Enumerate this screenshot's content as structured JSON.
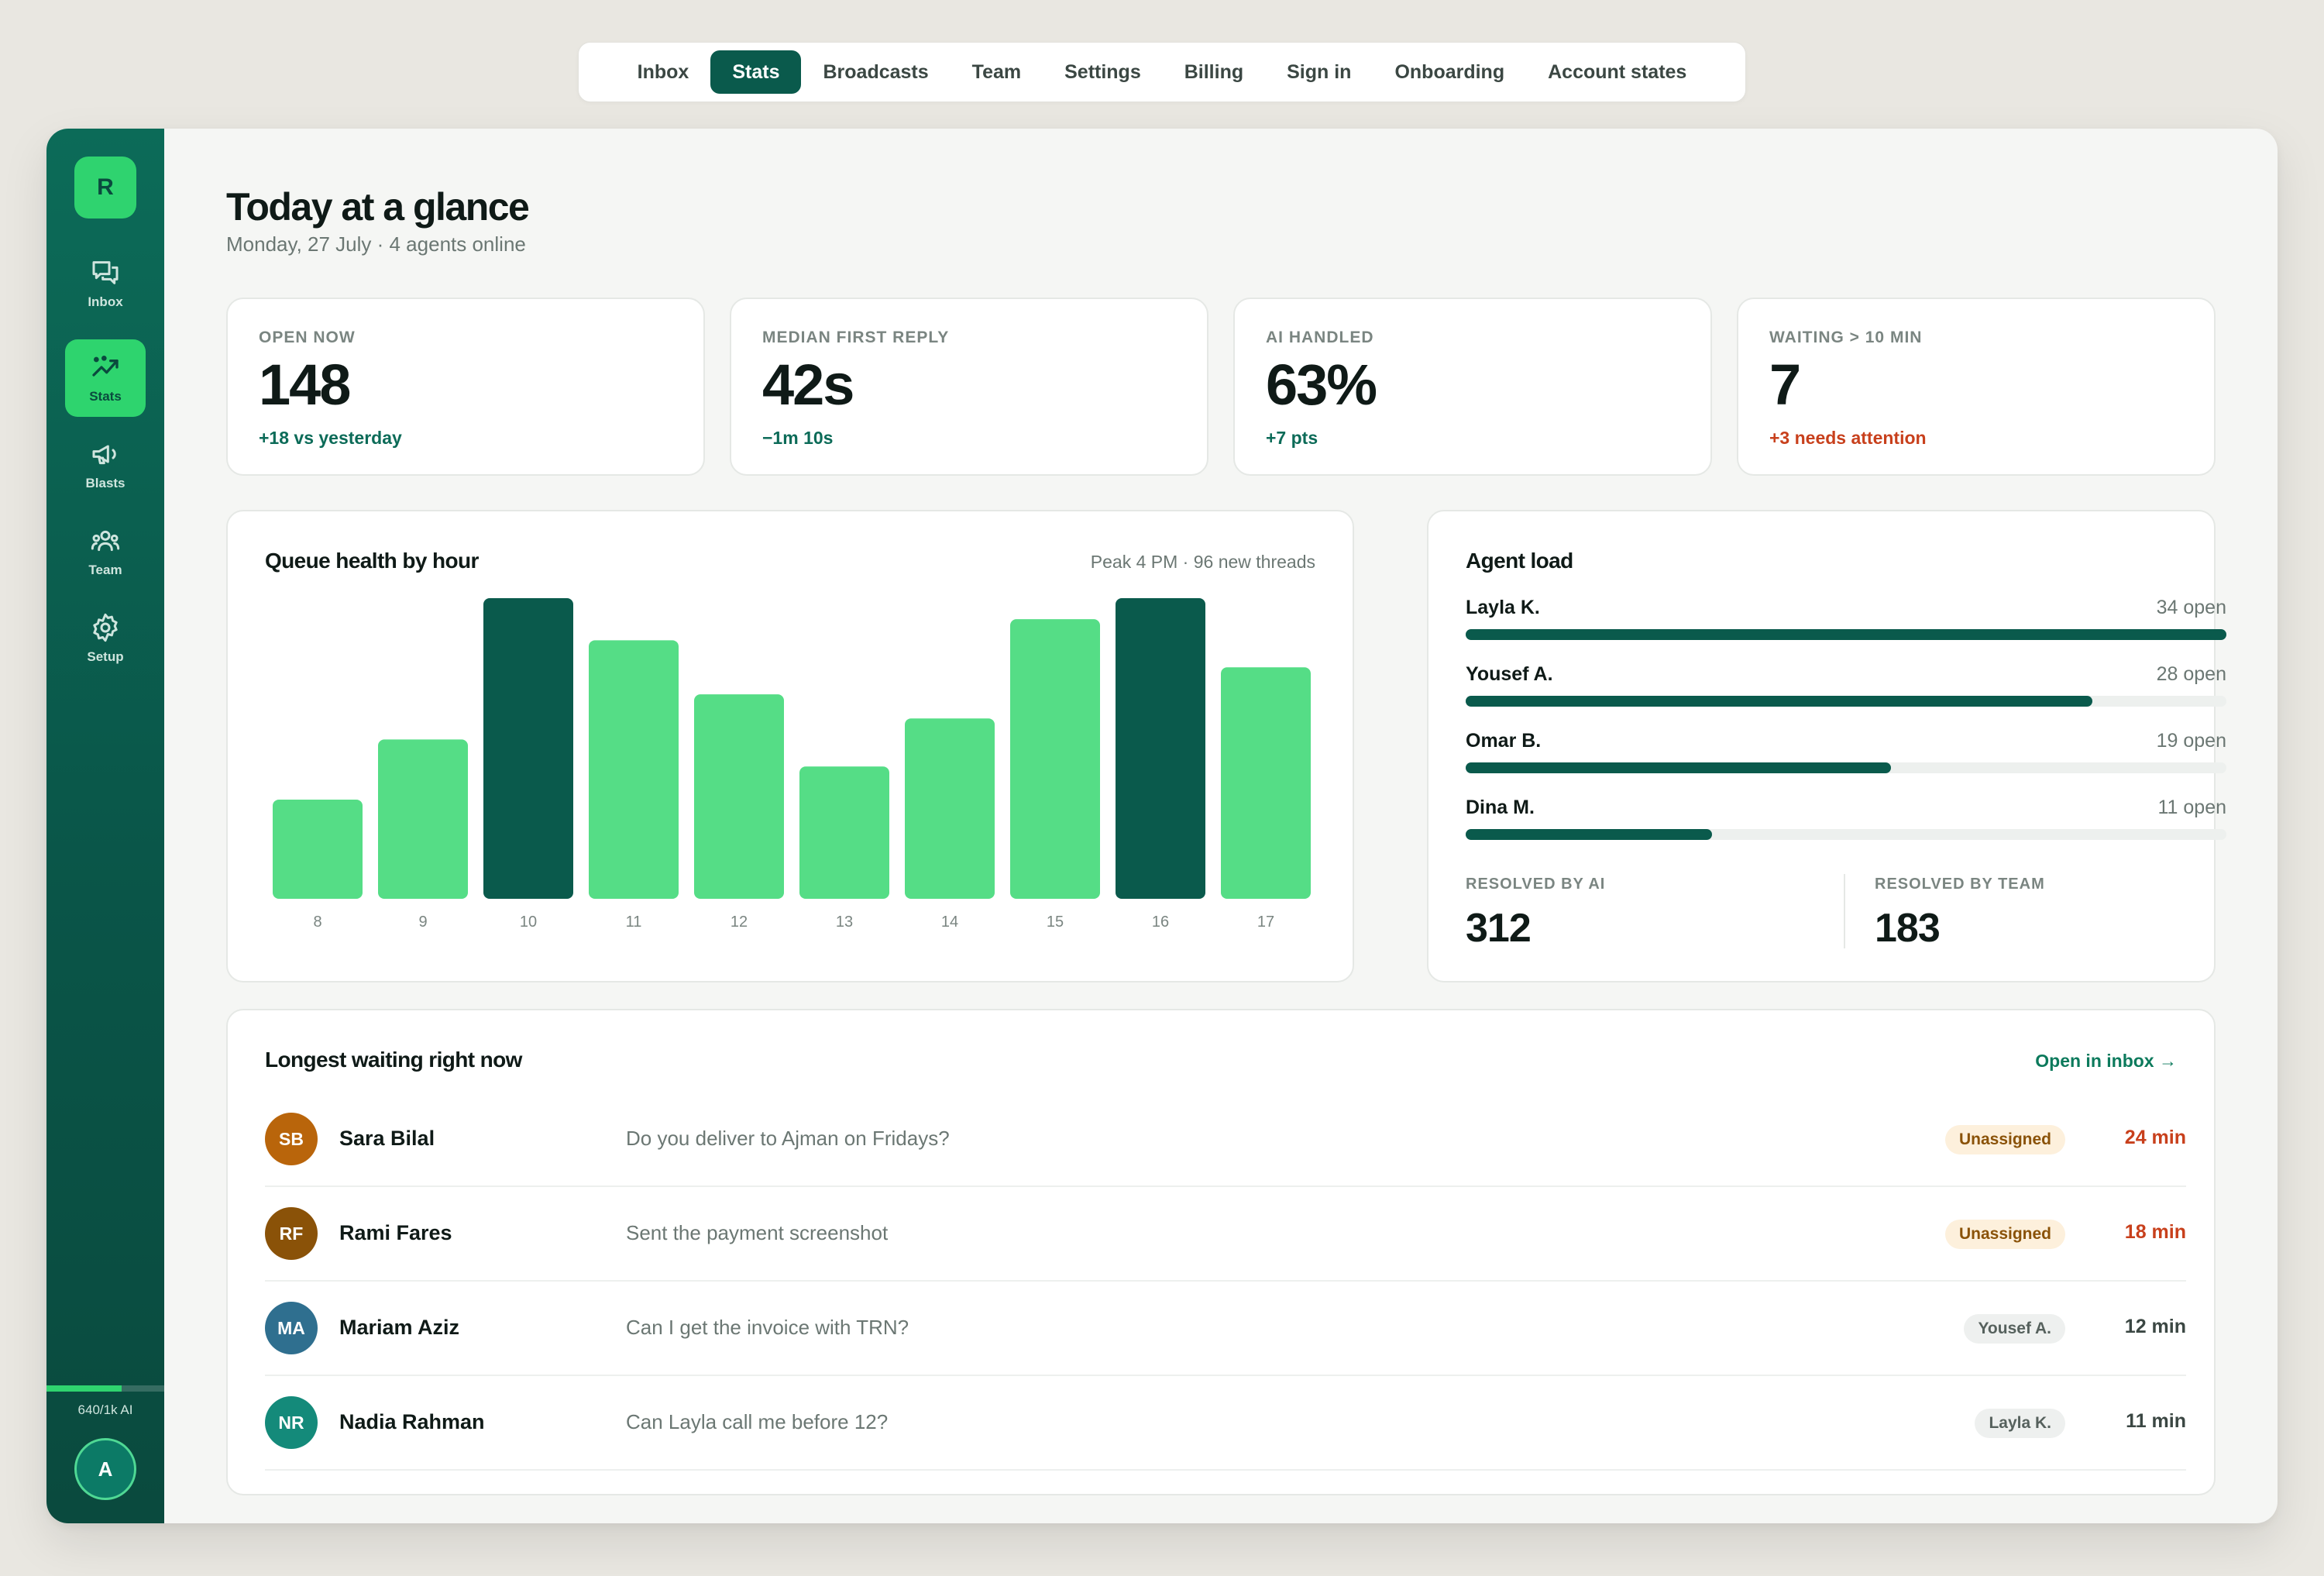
{
  "topnav": {
    "tabs": [
      "Inbox",
      "Stats",
      "Broadcasts",
      "Team",
      "Settings",
      "Billing",
      "Sign in",
      "Onboarding",
      "Account states"
    ],
    "active": "Stats"
  },
  "sidebar": {
    "logo": "R",
    "items": [
      {
        "label": "Inbox",
        "icon": "chat-icon"
      },
      {
        "label": "Stats",
        "icon": "trend-icon",
        "active": true
      },
      {
        "label": "Blasts",
        "icon": "megaphone-icon"
      },
      {
        "label": "Team",
        "icon": "team-icon"
      },
      {
        "label": "Setup",
        "icon": "gear-icon"
      }
    ],
    "quota_label": "640/1k AI",
    "quota_fraction": 0.64,
    "user_initial": "A"
  },
  "header": {
    "title": "Today at a glance",
    "subtitle": "Monday, 27 July · 4 agents online"
  },
  "kpis": [
    {
      "label": "OPEN NOW",
      "value": "148",
      "delta": "+18 vs yesterday",
      "tone": "good"
    },
    {
      "label": "MEDIAN FIRST REPLY",
      "value": "42s",
      "delta": "−1m 10s",
      "tone": "good"
    },
    {
      "label": "AI HANDLED",
      "value": "63%",
      "delta": "+7 pts",
      "tone": "good"
    },
    {
      "label": "WAITING > 10 MIN",
      "value": "7",
      "delta": "+3 needs attention",
      "tone": "warn"
    }
  ],
  "queue": {
    "title": "Queue health by hour",
    "meta": "Peak 4 PM · 96 new threads"
  },
  "chart_data": {
    "type": "bar",
    "categories": [
      "8",
      "9",
      "10",
      "11",
      "12",
      "13",
      "14",
      "15",
      "16",
      "17"
    ],
    "values": [
      33,
      53,
      100,
      86,
      68,
      44,
      60,
      93,
      100,
      77
    ],
    "highlight": [
      "10",
      "16"
    ],
    "ylim": [
      0,
      100
    ],
    "grid": false,
    "colors": {
      "normal": "#55dd86",
      "highlight": "#0a5a4c"
    }
  },
  "agent_load": {
    "title": "Agent load",
    "agents": [
      {
        "name": "Layla K.",
        "open_label": "34 open",
        "open": 34
      },
      {
        "name": "Yousef A.",
        "open_label": "28 open",
        "open": 28
      },
      {
        "name": "Omar B.",
        "open_label": "19 open",
        "open": 19
      },
      {
        "name": "Dina M.",
        "open_label": "11 open",
        "open": 11
      }
    ],
    "max_open": 34,
    "resolved_ai_label": "RESOLVED BY AI",
    "resolved_ai": "312",
    "resolved_team_label": "RESOLVED BY TEAM",
    "resolved_team": "183"
  },
  "waiting": {
    "title": "Longest waiting right now",
    "link": "Open in inbox →",
    "rows": [
      {
        "initials": "SB",
        "name": "Sara Bilal",
        "message": "Do you deliver to Ajman on Fridays?",
        "assignee": "Unassigned",
        "assigned": false,
        "wait": "24 min",
        "hot": true,
        "color": "#b9650b"
      },
      {
        "initials": "RF",
        "name": "Rami Fares",
        "message": "Sent the payment screenshot",
        "assignee": "Unassigned",
        "assigned": false,
        "wait": "18 min",
        "hot": true,
        "color": "#8a5208"
      },
      {
        "initials": "MA",
        "name": "Mariam Aziz",
        "message": "Can I get the invoice with TRN?",
        "assignee": "Yousef A.",
        "assigned": true,
        "wait": "12 min",
        "hot": false,
        "color": "#2f6f8f"
      },
      {
        "initials": "NR",
        "name": "Nadia Rahman",
        "message": "Can Layla call me before 12?",
        "assignee": "Layla K.",
        "assigned": true,
        "wait": "11 min",
        "hot": false,
        "color": "#148a7a"
      }
    ]
  },
  "colors": {
    "brand": "#0a5a4c",
    "accent": "#2fd36f",
    "warn": "#c8401c"
  }
}
